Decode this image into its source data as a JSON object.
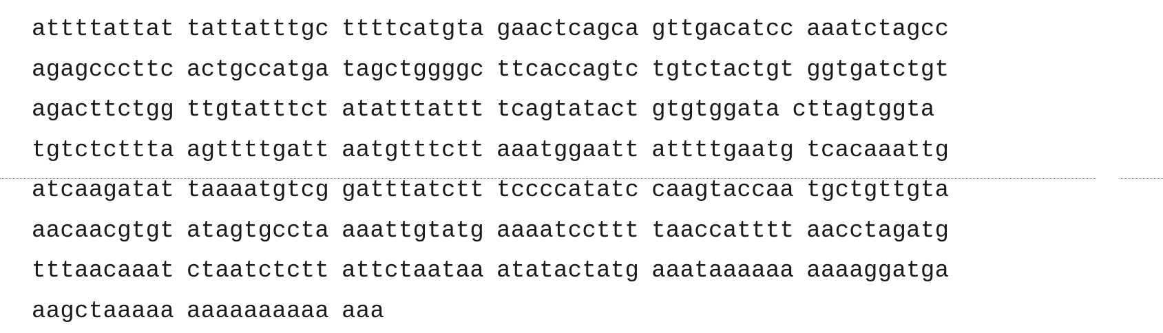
{
  "sequence": {
    "lines": [
      [
        "attttattat",
        "tattatttgc",
        "ttttcatgta",
        "gaactcagca",
        "gttgacatcc",
        "aaatctagcc"
      ],
      [
        "agagcccttc",
        "actgccatga",
        "tagctggggc",
        "ttcaccagtc",
        "tgtctactgt",
        "ggtgatctgt"
      ],
      [
        "agacttctgg",
        "ttgtatttct",
        "atatttattt",
        "tcagtatact",
        "gtgtggata",
        "cttagtggta"
      ],
      [
        "tgtctcttta",
        "agttttgatt",
        "aatgtttctt",
        "aaatggaatt",
        "attttgaatg",
        "tcacaaattg"
      ],
      [
        "atcaagatat",
        "taaaatgtcg",
        "gatttatctt",
        "tccccatatc",
        "caagtaccaa",
        "tgctgttgta"
      ],
      [
        "aacaacgtgt",
        "atagtgccta",
        "aaattgtatg",
        "aaaatccttt",
        "taaccatttt",
        "aacctagatg"
      ],
      [
        "tttaacaaat",
        "ctaatctctt",
        "attctaataa",
        "atatactatg",
        "aaataaaaaa",
        "aaaaggatga"
      ],
      [
        "aagctaaaaa",
        "aaaaaaaaaa",
        "aaa"
      ]
    ]
  }
}
